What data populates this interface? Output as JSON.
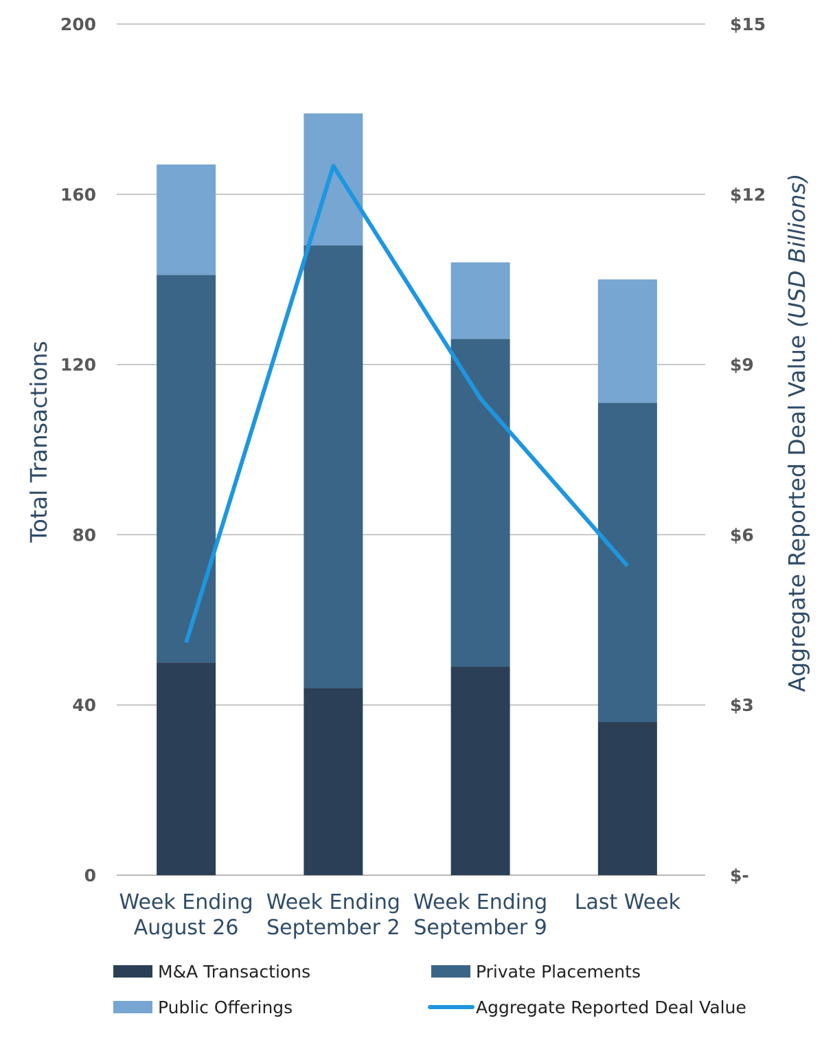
{
  "chart_data": {
    "type": "bar",
    "stacked": true,
    "categories": [
      [
        "Week Ending",
        "August 26"
      ],
      [
        "Week Ending",
        "September 2"
      ],
      [
        "Week Ending",
        "September 9"
      ],
      [
        "Last Week"
      ]
    ],
    "series": [
      {
        "name": "M&A Transactions",
        "type": "bar",
        "axis": "left",
        "color": "#2b4057",
        "values": [
          50,
          44,
          49,
          36
        ]
      },
      {
        "name": "Private Placements",
        "type": "bar",
        "axis": "left",
        "color": "#3a6587",
        "values": [
          91,
          104,
          77,
          75
        ]
      },
      {
        "name": "Public Offerings",
        "type": "bar",
        "axis": "left",
        "color": "#76a6d1",
        "values": [
          26,
          31,
          18,
          29
        ]
      },
      {
        "name": "Aggregate Reported Deal Value",
        "type": "line",
        "axis": "right",
        "color": "#1e96e0",
        "values": [
          4.1,
          12.5,
          8.4,
          5.45
        ]
      }
    ],
    "ylabel": "Total Transactions",
    "y2label": "Aggregate Reported Deal Value",
    "y2label_unit": "(USD Billions)",
    "ylim": [
      0,
      200
    ],
    "y2lim": [
      0,
      15
    ],
    "yticks": [
      "0",
      "40",
      "80",
      "120",
      "160",
      "200"
    ],
    "y2ticks": [
      "$-",
      "$3",
      "$6",
      "$9",
      "$12",
      "$15"
    ],
    "grid": true,
    "legend": "bottom"
  }
}
